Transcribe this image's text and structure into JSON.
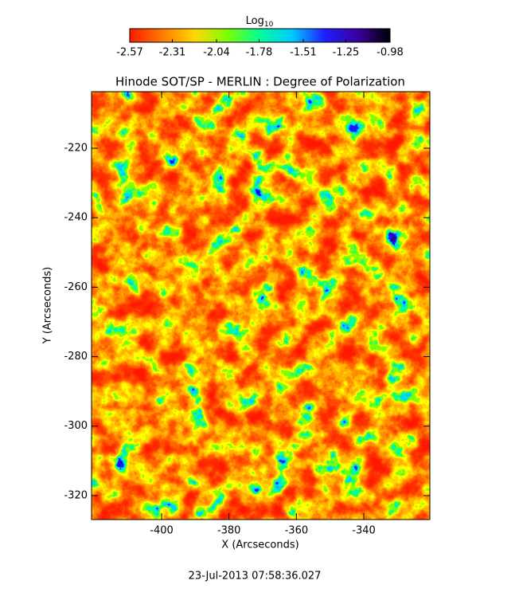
{
  "chart_data": {
    "type": "image",
    "title": "Hinode SOT/SP - MERLIN : Degree of Polarization",
    "x_label": "X (Arcseconds)",
    "y_label": "Y (Arcseconds)",
    "xlim": [
      -420.8,
      -320.4
    ],
    "xticks": [
      -400,
      -380,
      -360,
      -340
    ],
    "ylim": [
      -326.9,
      -203.7
    ],
    "yticks": [
      -320,
      -300,
      -280,
      -260,
      -240,
      -220
    ],
    "colorbar": {
      "label": "Log",
      "label_subscript": "10",
      "lim": [
        -2.57,
        -0.98
      ],
      "ticks": [
        -2.57,
        -2.31,
        -2.04,
        -1.78,
        -1.51,
        -1.25,
        -0.98
      ],
      "colors": [
        "#ff1a00",
        "#ff7a00",
        "#ffd800",
        "#7cff00",
        "#00ff9a",
        "#00c8ff",
        "#1e1eff",
        "#3a00a0",
        "#000000"
      ]
    },
    "footer": "23-Jul-2013 07:58:36.027"
  }
}
